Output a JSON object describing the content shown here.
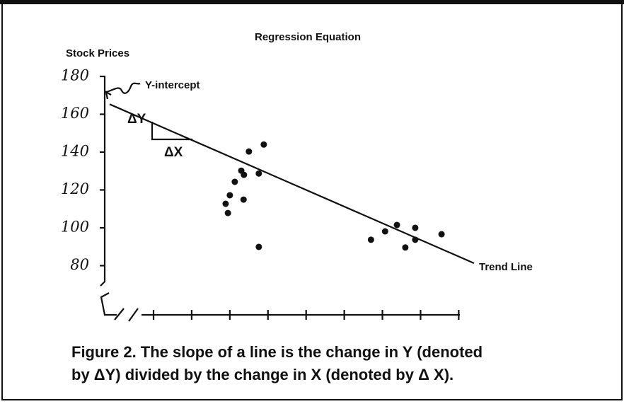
{
  "chart_data": {
    "type": "scatter",
    "title": "Regression Equation",
    "y_label": "Stock Prices",
    "annotations": {
      "intercept": "Y-intercept",
      "delta_y": "ΔY",
      "delta_x": "ΔX",
      "trend": "Trend Line"
    },
    "caption": [
      "Figure 2. The slope of a line is the change in Y (denoted",
      "by ΔY) divided by the change in X (denoted by Δ X)."
    ],
    "x": [
      2.89,
      3.0,
      2.95,
      3.13,
      3.3,
      3.37,
      3.36,
      3.5,
      3.76,
      3.89,
      3.76,
      6.7,
      7.07,
      7.38,
      7.6,
      7.86,
      7.86,
      8.55
    ],
    "y": [
      112.7,
      117.2,
      107.8,
      124.3,
      130.2,
      128.0,
      114.9,
      140.3,
      128.7,
      144.0,
      89.9,
      93.7,
      98.1,
      101.5,
      89.6,
      100,
      93.7,
      96.6
    ],
    "color": "#111111",
    "trend_line": {
      "x": [
        -0.15,
        9.4
      ],
      "y": [
        165.3,
        81.3
      ]
    },
    "xlim": [
      -0.28,
      9.03
    ],
    "ylim": [
      54,
      180
    ],
    "xticks": [
      1,
      2,
      3,
      4,
      5,
      6,
      7,
      8,
      9
    ],
    "yticks": [
      80,
      100,
      120,
      140,
      160,
      180
    ]
  }
}
